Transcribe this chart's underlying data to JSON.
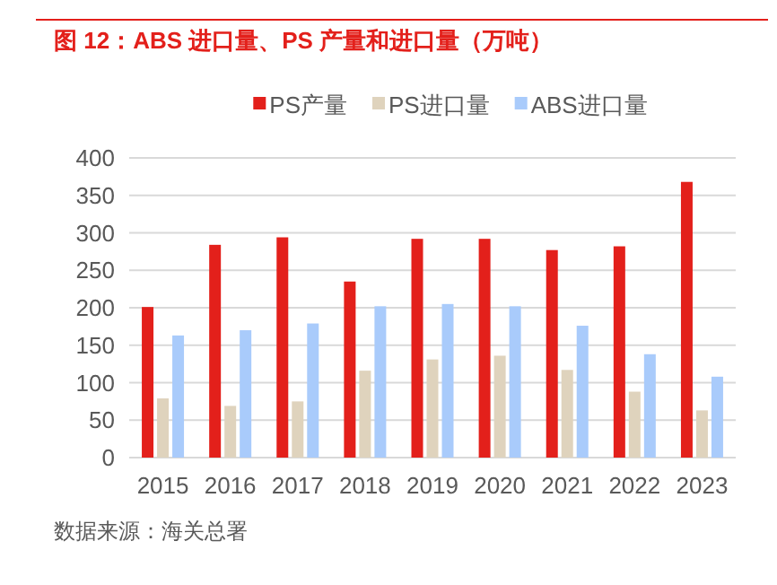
{
  "chart_data": {
    "type": "bar",
    "title": "图 12：ABS 进口量、PS 产量和进口量（万吨）",
    "categories": [
      "2015",
      "2016",
      "2017",
      "2018",
      "2019",
      "2020",
      "2021",
      "2022",
      "2023"
    ],
    "series": [
      {
        "name": "PS产量",
        "color": "#e3201b",
        "values": [
          201,
          284,
          294,
          235,
          292,
          292,
          277,
          282,
          368
        ]
      },
      {
        "name": "PS进口量",
        "color": "#dfd3bd",
        "values": [
          79,
          69,
          75,
          116,
          131,
          136,
          117,
          88,
          63
        ]
      },
      {
        "name": "ABS进口量",
        "color": "#a9cbfb",
        "values": [
          163,
          170,
          179,
          202,
          205,
          202,
          176,
          138,
          108
        ]
      }
    ],
    "ylim": [
      0,
      400
    ],
    "yticks": [
      0,
      50,
      100,
      150,
      200,
      250,
      300,
      350,
      400
    ],
    "grid": "y",
    "legend": "top",
    "annotations": [
      "数据来源：海关总署"
    ]
  }
}
